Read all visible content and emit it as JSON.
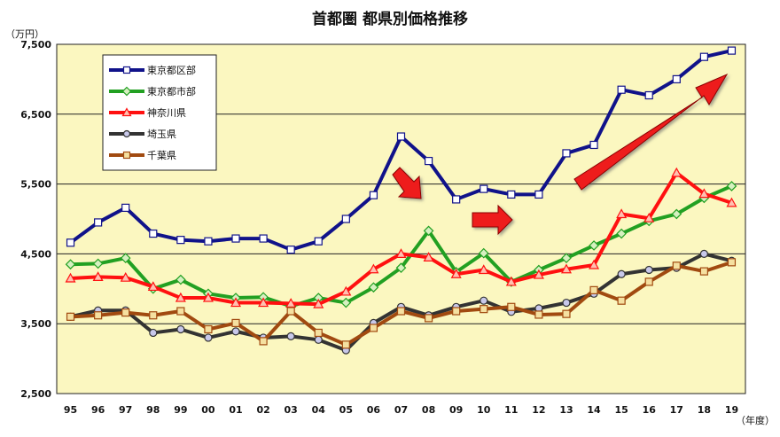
{
  "chart_data": {
    "type": "line",
    "title": "首都圏 都県別価格推移",
    "ylabel": "（万円）",
    "xlabel": "（年度）",
    "ylim": [
      2500,
      7500
    ],
    "yticks": [
      "2,500",
      "3,500",
      "4,500",
      "5,500",
      "6,500",
      "7,500"
    ],
    "ytick_values": [
      2500,
      3500,
      4500,
      5500,
      6500,
      7500
    ],
    "categories": [
      "95",
      "96",
      "97",
      "98",
      "99",
      "00",
      "01",
      "02",
      "03",
      "04",
      "05",
      "06",
      "07",
      "08",
      "09",
      "10",
      "11",
      "12",
      "13",
      "14",
      "15",
      "16",
      "17",
      "18",
      "19"
    ],
    "grid": "horizontal",
    "legend_position": "top-left",
    "plot_background": "#fbf7c0",
    "series": [
      {
        "name": "東京都区部",
        "color": "#10128a",
        "marker": "square",
        "marker_fill": "#ffffff",
        "values": [
          4660,
          4950,
          5160,
          4790,
          4700,
          4680,
          4720,
          4720,
          4560,
          4680,
          5000,
          5340,
          6180,
          5830,
          5280,
          5430,
          5350,
          5350,
          5940,
          6060,
          6850,
          6770,
          7000,
          7320,
          7410
        ]
      },
      {
        "name": "東京都市部",
        "color": "#22a022",
        "marker": "diamond",
        "marker_fill": "#d6f0c0",
        "values": [
          4350,
          4360,
          4440,
          4000,
          4130,
          3930,
          3870,
          3880,
          3750,
          3870,
          3800,
          4020,
          4300,
          4830,
          4240,
          4510,
          4100,
          4270,
          4440,
          4620,
          4790,
          4970,
          5070,
          5300,
          5470
        ]
      },
      {
        "name": "神奈川県",
        "color": "#ff1010",
        "marker": "triangle",
        "marker_fill": "#ffc0b0",
        "values": [
          4150,
          4170,
          4160,
          4030,
          3870,
          3870,
          3800,
          3800,
          3790,
          3780,
          3960,
          4280,
          4500,
          4450,
          4210,
          4270,
          4100,
          4200,
          4280,
          4340,
          5070,
          5010,
          5660,
          5360,
          5230
        ]
      },
      {
        "name": "埼玉県",
        "color": "#333333",
        "marker": "circle",
        "marker_fill": "#c8c8ea",
        "values": [
          3600,
          3690,
          3690,
          3370,
          3420,
          3300,
          3390,
          3300,
          3320,
          3270,
          3120,
          3510,
          3740,
          3620,
          3740,
          3830,
          3670,
          3720,
          3800,
          3930,
          4210,
          4270,
          4300,
          4500,
          4400
        ]
      },
      {
        "name": "千葉県",
        "color": "#a14a10",
        "marker": "square",
        "marker_fill": "#f5e0a0",
        "values": [
          3600,
          3620,
          3660,
          3620,
          3680,
          3420,
          3510,
          3250,
          3680,
          3370,
          3200,
          3440,
          3680,
          3580,
          3680,
          3710,
          3740,
          3630,
          3640,
          3980,
          3830,
          4100,
          4330,
          4250,
          4380
        ]
      }
    ]
  },
  "colors": {
    "frame": "#222222",
    "arrow_fill": "#ee1b1b",
    "arrow_stroke": "#8a0000"
  }
}
